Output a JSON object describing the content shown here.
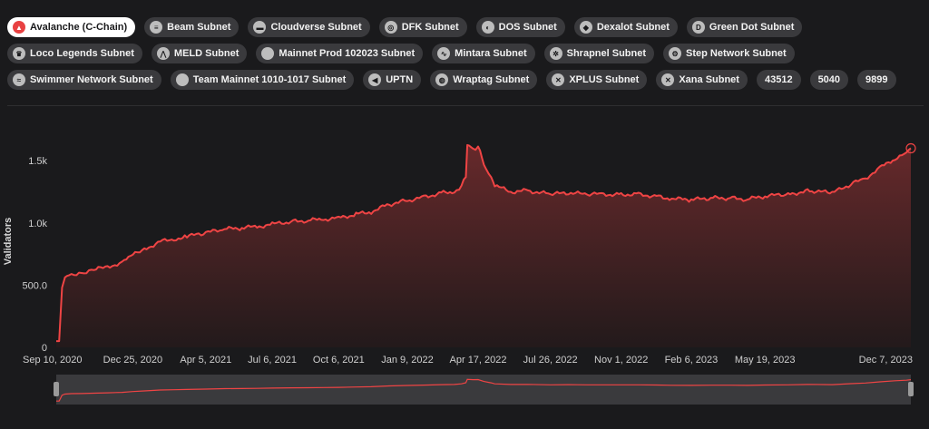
{
  "subnets": [
    {
      "label": "Avalanche (C-Chain)",
      "icon": "avalanche-logo-icon",
      "glyph": "▲",
      "active": true
    },
    {
      "label": "Beam Subnet",
      "icon": "beam-logo-icon",
      "glyph": "≡"
    },
    {
      "label": "Cloudverse Subnet",
      "icon": "cloudverse-logo-icon",
      "glyph": "▬"
    },
    {
      "label": "DFK Subnet",
      "icon": "dfk-logo-icon",
      "glyph": "◎"
    },
    {
      "label": "DOS Subnet",
      "icon": "dos-logo-icon",
      "glyph": "◐"
    },
    {
      "label": "Dexalot Subnet",
      "icon": "dexalot-logo-icon",
      "glyph": "◆"
    },
    {
      "label": "Green Dot Subnet",
      "icon": "green-dot-logo-icon",
      "glyph": "D"
    },
    {
      "label": "Loco Legends Subnet",
      "icon": "loco-legends-logo-icon",
      "glyph": "♛"
    },
    {
      "label": "MELD Subnet",
      "icon": "meld-logo-icon",
      "glyph": "⋀"
    },
    {
      "label": "Mainnet Prod 102023 Subnet",
      "icon": "mainnet-prod-logo-icon",
      "glyph": ""
    },
    {
      "label": "Mintara Subnet",
      "icon": "mintara-logo-icon",
      "glyph": "∿"
    },
    {
      "label": "Shrapnel Subnet",
      "icon": "shrapnel-logo-icon",
      "glyph": "✲"
    },
    {
      "label": "Step Network Subnet",
      "icon": "step-network-logo-icon",
      "glyph": "⚙"
    },
    {
      "label": "Swimmer Network Subnet",
      "icon": "swimmer-logo-icon",
      "glyph": "≈"
    },
    {
      "label": "Team Mainnet 1010-1017 Subnet",
      "icon": "team-mainnet-logo-icon",
      "glyph": ""
    },
    {
      "label": "UPTN",
      "icon": "uptn-logo-icon",
      "glyph": "◀"
    },
    {
      "label": "Wraptag Subnet",
      "icon": "wraptag-logo-icon",
      "glyph": "◍"
    },
    {
      "label": "XPLUS Subnet",
      "icon": "xplus-logo-icon",
      "glyph": "✕"
    },
    {
      "label": "Xana Subnet",
      "icon": "xana-logo-icon",
      "glyph": "✕"
    },
    {
      "label": "43512",
      "icon": "",
      "glyph": ""
    },
    {
      "label": "5040",
      "icon": "",
      "glyph": ""
    },
    {
      "label": "9899",
      "icon": "",
      "glyph": ""
    }
  ],
  "colors": {
    "line": "#ef4444",
    "fill_top": "#6b2a2c",
    "fill_bottom": "#241a1b",
    "background": "#1a1a1c"
  },
  "chart_data": {
    "type": "area",
    "ylabel": "Validators",
    "y_ticks": [
      "0",
      "500.0",
      "1.0k",
      "1.5k"
    ],
    "y_tick_values": [
      0,
      500,
      1000,
      1500
    ],
    "ylim": [
      0,
      1640
    ],
    "x_tick_labels": [
      "Sep 10, 2020",
      "Dec 25, 2020",
      "Apr 5, 2021",
      "Jul 6, 2021",
      "Oct 6, 2021",
      "Jan 9, 2022",
      "Apr 17, 2022",
      "Jul 26, 2022",
      "Nov 1, 2022",
      "Feb 6, 2023",
      "May 19, 2023",
      "Dec 7, 2023"
    ],
    "x_tick_dates": [
      "2020-09-10",
      "2020-12-25",
      "2021-04-05",
      "2021-07-06",
      "2021-10-06",
      "2022-01-09",
      "2022-04-17",
      "2022-07-26",
      "2022-11-01",
      "2023-02-06",
      "2023-05-19",
      "2023-12-07"
    ],
    "xlim": [
      "2020-09-10",
      "2023-12-07"
    ],
    "grid": false,
    "series": [
      {
        "x": [
          "2020-09-10",
          "2020-09-14",
          "2020-09-18",
          "2020-09-22",
          "2020-10-01",
          "2020-10-15",
          "2020-11-01",
          "2020-11-20",
          "2020-12-10",
          "2020-12-25",
          "2021-01-10",
          "2021-02-01",
          "2021-02-20",
          "2021-03-10",
          "2021-04-05",
          "2021-05-01",
          "2021-05-25",
          "2021-06-15",
          "2021-07-06",
          "2021-08-01",
          "2021-08-25",
          "2021-09-15",
          "2021-10-06",
          "2021-10-30",
          "2021-11-20",
          "2021-12-15",
          "2022-01-09",
          "2022-02-01",
          "2022-02-25",
          "2022-03-15",
          "2022-03-25",
          "2022-03-31",
          "2022-04-02",
          "2022-04-10",
          "2022-04-17",
          "2022-04-25",
          "2022-05-05",
          "2022-05-10",
          "2022-06-01",
          "2022-06-25",
          "2022-07-26",
          "2022-08-20",
          "2022-09-15",
          "2022-10-05",
          "2022-11-01",
          "2022-11-25",
          "2022-12-20",
          "2023-01-10",
          "2023-02-06",
          "2023-03-05",
          "2023-04-01",
          "2023-04-25",
          "2023-05-19",
          "2023-06-20",
          "2023-07-20",
          "2023-08-20",
          "2023-09-15",
          "2023-10-05",
          "2023-10-25",
          "2023-11-15",
          "2023-12-01",
          "2023-12-07"
        ],
        "y": [
          50,
          50,
          480,
          560,
          590,
          600,
          620,
          650,
          680,
          740,
          790,
          850,
          870,
          890,
          920,
          950,
          960,
          970,
          990,
          1010,
          1020,
          1030,
          1040,
          1070,
          1090,
          1150,
          1180,
          1210,
          1240,
          1250,
          1300,
          1380,
          1620,
          1600,
          1610,
          1470,
          1370,
          1300,
          1250,
          1260,
          1230,
          1240,
          1230,
          1230,
          1230,
          1230,
          1215,
          1195,
          1185,
          1200,
          1200,
          1190,
          1215,
          1230,
          1260,
          1240,
          1310,
          1360,
          1440,
          1520,
          1560,
          1600
        ]
      }
    ]
  }
}
